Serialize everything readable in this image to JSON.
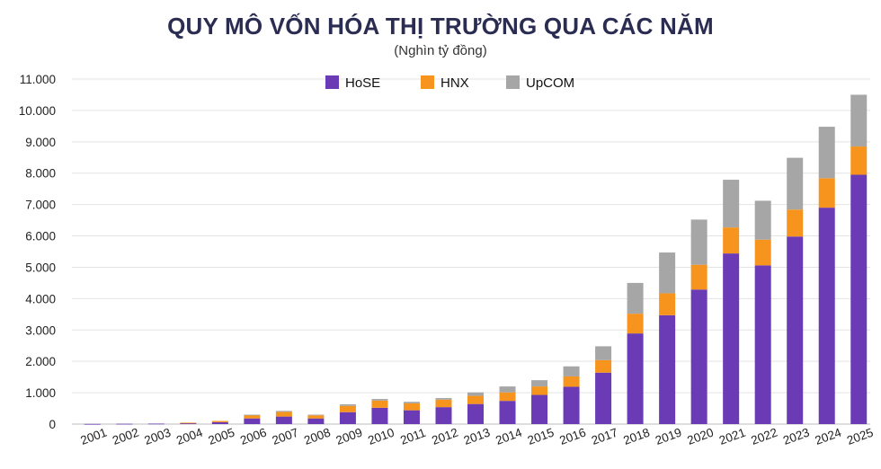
{
  "chart_data": {
    "type": "bar",
    "stacked": true,
    "title": "QUY MÔ VỐN HÓA THỊ TRƯỜNG QUA CÁC NĂM",
    "subtitle": "(Nghìn tỷ đồng)",
    "ylim": [
      0,
      11000
    ],
    "yticks": [
      "0",
      "1.000",
      "2.000",
      "3.000",
      "4.000",
      "5.000",
      "6.000",
      "7.000",
      "8.000",
      "9.000",
      "10.000",
      "11.000"
    ],
    "grid": true,
    "legend_position": "top-center",
    "categories": [
      "2001",
      "2002",
      "2003",
      "2004",
      "2005",
      "2006",
      "2007",
      "2008",
      "2009",
      "2010",
      "2011",
      "2012",
      "2013",
      "2014",
      "2015",
      "2016",
      "2017",
      "2018",
      "2019",
      "2020",
      "2021",
      "2022",
      "2023",
      "2024",
      "2025"
    ],
    "series": [
      {
        "name": "HoSE",
        "color": "#6a3bb5",
        "values": [
          5,
          10,
          15,
          30,
          60,
          180,
          240,
          180,
          380,
          520,
          440,
          540,
          640,
          740,
          930,
          1190,
          1640,
          2890,
          3470,
          4290,
          5440,
          5060,
          5980,
          6900,
          7950
        ]
      },
      {
        "name": "HNX",
        "color": "#f7941d",
        "values": [
          0,
          0,
          0,
          15,
          40,
          110,
          150,
          100,
          200,
          230,
          220,
          240,
          260,
          270,
          270,
          330,
          400,
          630,
          700,
          790,
          830,
          820,
          860,
          940,
          900
        ]
      },
      {
        "name": "UpCOM",
        "color": "#a6a6a6",
        "values": [
          0,
          0,
          0,
          0,
          0,
          10,
          30,
          20,
          50,
          50,
          50,
          50,
          110,
          190,
          200,
          320,
          440,
          980,
          1300,
          1440,
          1520,
          1240,
          1650,
          1640,
          1650
        ]
      }
    ]
  }
}
